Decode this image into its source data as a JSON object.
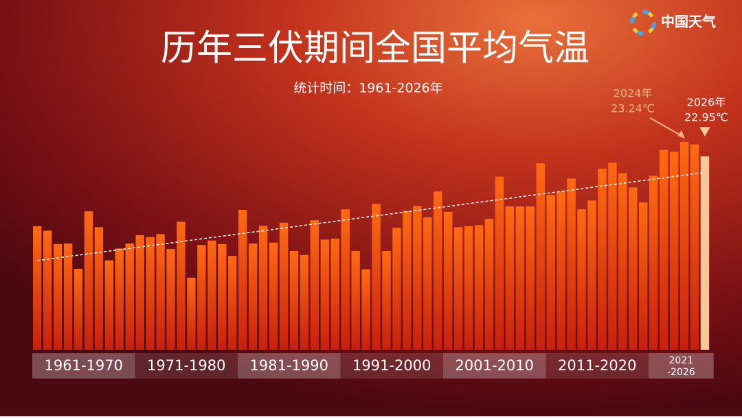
{
  "chart_data": {
    "type": "bar",
    "title": "历年三伏期间全国平均气温",
    "subtitle": "统计时间：1961-2026年",
    "brand": "中国天气",
    "groups": [
      "1961-1970",
      "1971-1980",
      "1981-1990",
      "1991-2000",
      "2001-2010",
      "2011-2020",
      "2021\n-2026"
    ],
    "categories": [
      null,
      null,
      null,
      null,
      null,
      null,
      null,
      null,
      null,
      null,
      null,
      null,
      null,
      null,
      null,
      null,
      null,
      null,
      null,
      null,
      null,
      null,
      null,
      null,
      null,
      null,
      null,
      null,
      null,
      null,
      null,
      null,
      null,
      null,
      null,
      null,
      null,
      null,
      null,
      null,
      null,
      null,
      null,
      null,
      null,
      null,
      null,
      null,
      null,
      null,
      null,
      null,
      null,
      null,
      null,
      null,
      null,
      null,
      null,
      null,
      null,
      null,
      null,
      null,
      null,
      null
    ],
    "values": [
      21.54,
      21.45,
      21.18,
      21.19,
      20.68,
      21.84,
      21.52,
      20.85,
      21.09,
      21.19,
      21.36,
      21.32,
      21.38,
      21.08,
      21.63,
      20.5,
      21.16,
      21.25,
      21.18,
      20.94,
      21.87,
      21.19,
      21.55,
      21.21,
      21.61,
      21.04,
      20.96,
      21.66,
      21.27,
      21.29,
      21.88,
      21.04,
      20.67,
      21.99,
      21.04,
      21.51,
      21.85,
      21.95,
      21.72,
      22.24,
      21.83,
      21.52,
      21.54,
      21.56,
      21.69,
      22.54,
      21.94,
      21.94,
      21.94,
      22.81,
      22.17,
      22.24,
      22.5,
      21.88,
      22.06,
      22.7,
      22.82,
      22.61,
      22.32,
      22.02,
      22.56,
      23.08,
      23.04,
      23.24,
      23.19,
      22.95
    ],
    "value_labels": [
      null,
      null,
      null,
      null,
      null,
      null,
      null,
      null,
      null,
      null,
      null,
      null,
      null,
      null,
      null,
      null,
      null,
      null,
      null,
      null,
      null,
      null,
      null,
      null,
      null,
      null,
      null,
      null,
      null,
      null,
      null,
      null,
      null,
      null,
      null,
      null,
      null,
      null,
      null,
      null,
      null,
      null,
      null,
      null,
      null,
      null,
      null,
      null,
      null,
      null,
      null,
      null,
      null,
      null,
      null,
      null,
      null,
      null,
      null,
      null,
      null,
      null,
      null,
      "23.24℃",
      null,
      "22.95℃"
    ],
    "annotations": [
      "2024年",
      "2026年"
    ],
    "color": "#ff6a12",
    "color_bottom": "#c8200e",
    "highlight_color": "#f9c69a",
    "trend_line": true
  }
}
